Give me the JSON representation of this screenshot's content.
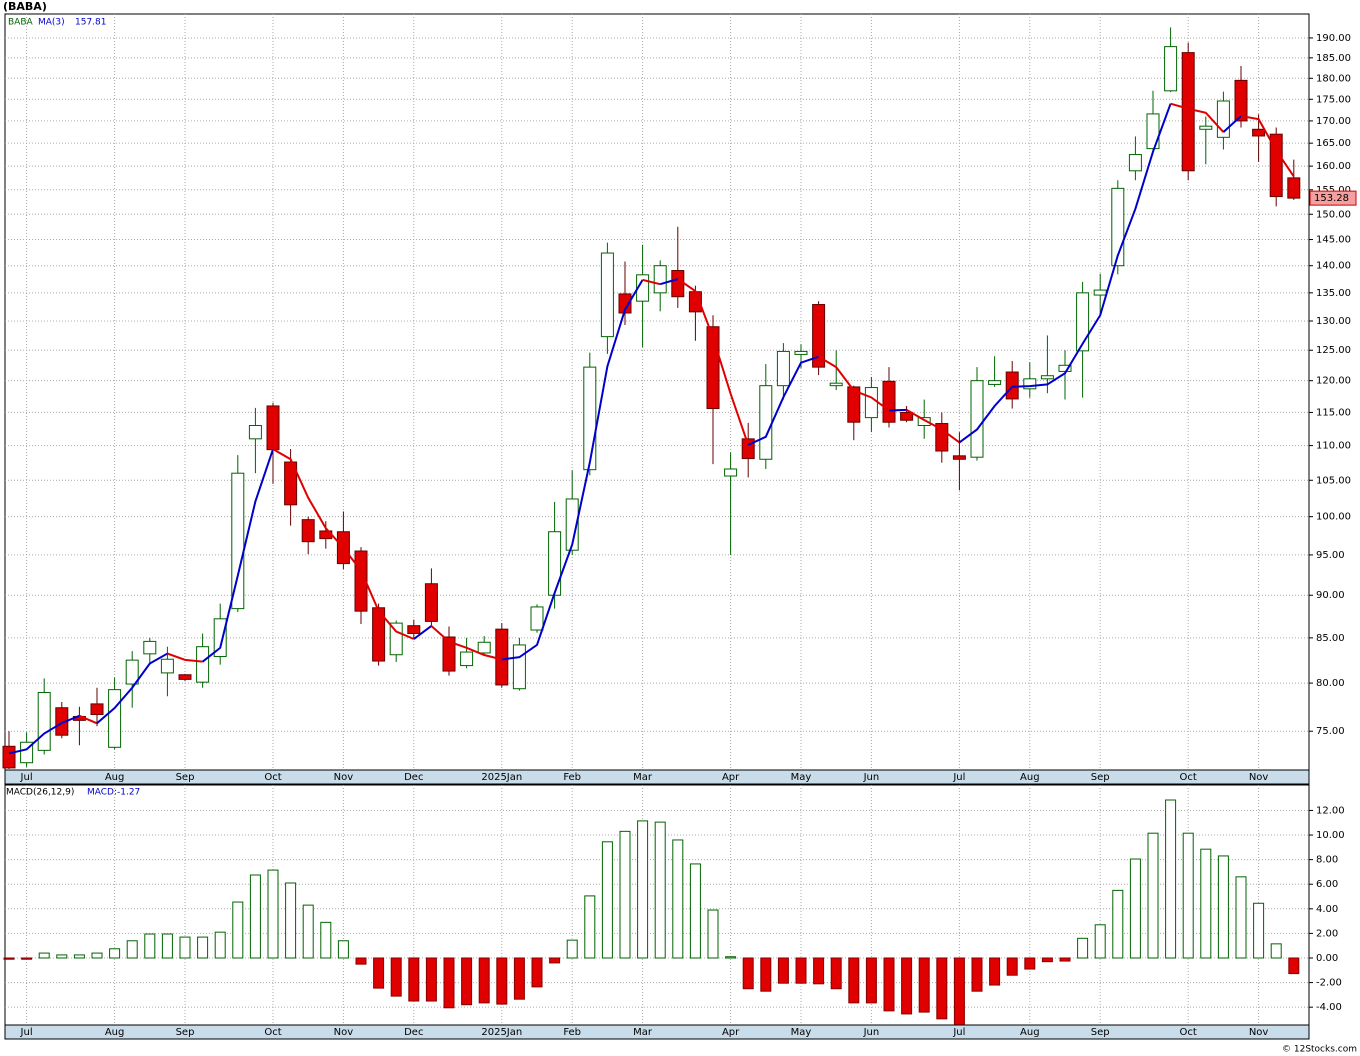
{
  "title": "(BABA)",
  "footer": "© 12Stocks.com",
  "chart_data": [
    {
      "type": "candlestick",
      "categories": [
        null,
        "Jul",
        null,
        null,
        null,
        null,
        "Aug",
        null,
        null,
        null,
        "Sep",
        null,
        null,
        null,
        null,
        "Oct",
        null,
        null,
        null,
        "Nov",
        null,
        null,
        null,
        "Dec",
        null,
        null,
        null,
        null,
        "2025Jan",
        null,
        null,
        null,
        "Feb",
        null,
        null,
        null,
        "Mar",
        null,
        null,
        null,
        null,
        "Apr",
        null,
        null,
        null,
        "May",
        null,
        null,
        null,
        "Jun",
        null,
        null,
        null,
        null,
        "Jul",
        null,
        null,
        null,
        "Aug",
        null,
        null,
        null,
        "Sep",
        null,
        null,
        null,
        null,
        "Oct",
        null,
        null,
        null,
        "Nov",
        null,
        null
      ],
      "series": [
        {
          "name": "BABA",
          "color": "#006400",
          "down_color": "#e00000",
          "open": [
            73.5,
            71.9,
            73.1,
            77.4,
            76.5,
            77.8,
            73.4,
            79.9,
            83.2,
            81.1,
            80.9,
            80.1,
            82.9,
            88.4,
            111,
            116,
            107.6,
            99.6,
            98.1,
            98.0,
            95.5,
            88.5,
            83.1,
            86.4,
            91.4,
            85.1,
            81.9,
            83.3,
            86.0,
            79.4,
            85.9,
            90,
            95.6,
            106.5,
            127.3,
            134.8,
            133.5,
            135,
            139.1,
            135.2,
            129,
            105.6,
            111,
            108,
            119.2,
            124.3,
            132.9,
            119.2,
            119,
            114.2,
            119.9,
            115,
            113,
            113.3,
            108.5,
            108.3,
            119.4,
            121.4,
            118.7,
            120.3,
            121.5,
            124.9,
            134.6,
            140,
            159,
            163.8,
            177,
            186.3,
            168.1,
            166.3,
            179.5,
            168.1,
            167,
            157.5
          ],
          "high": [
            75,
            74.9,
            80.5,
            78,
            77.5,
            79.5,
            80.6,
            83.5,
            85,
            84,
            81,
            85.5,
            89,
            108.6,
            115.7,
            116.5,
            109.5,
            100,
            99.4,
            100.7,
            96,
            89,
            87,
            87.1,
            93.3,
            86.3,
            85,
            85.2,
            86.7,
            85,
            88.9,
            102,
            106.4,
            124.6,
            144.4,
            140.8,
            144,
            141,
            147.5,
            136.3,
            131,
            109,
            113.4,
            122.7,
            126.2,
            126,
            133.5,
            125,
            119.2,
            120.6,
            122.2,
            116,
            117,
            115,
            112,
            122.2,
            124,
            123.2,
            123,
            127.5,
            125,
            137,
            138.5,
            157,
            166.5,
            177,
            192.7,
            188.8,
            171,
            176.8,
            183,
            171.5,
            168.5,
            161.4
          ],
          "low": [
            71.3,
            71.5,
            72.7,
            74.3,
            73.6,
            75.5,
            73.2,
            77.4,
            82,
            78.6,
            80.2,
            79.5,
            82,
            88,
            106,
            104.5,
            98.8,
            95.1,
            95.8,
            93.2,
            86.6,
            81.9,
            82.3,
            84.9,
            86.2,
            80.8,
            81.6,
            83,
            79.5,
            79.2,
            85.6,
            88.4,
            95,
            105.7,
            124.4,
            129.3,
            125.5,
            131.7,
            132.3,
            126.6,
            107.3,
            95,
            105.4,
            106.6,
            117,
            122,
            120.9,
            118.5,
            110.8,
            112,
            112.7,
            113.5,
            111,
            107.5,
            103.6,
            107.8,
            119,
            115.6,
            117.3,
            118,
            117,
            117.3,
            131,
            138.4,
            157,
            162.5,
            176.7,
            157,
            160.4,
            163.6,
            168.5,
            160.9,
            151.6,
            152.9
          ],
          "close": [
            71.4,
            73.9,
            79,
            74.6,
            76.1,
            76.7,
            79.3,
            82.5,
            84.6,
            82.6,
            80.4,
            84,
            87.2,
            106,
            113,
            109.4,
            101.6,
            96.7,
            97.1,
            93.9,
            88.1,
            82.4,
            86.7,
            85.5,
            86.9,
            81.3,
            83.4,
            84.5,
            79.8,
            84.2,
            88.6,
            98,
            102.4,
            122.2,
            142.4,
            131.4,
            138.3,
            140,
            134.3,
            131.6,
            115.6,
            106.6,
            108.1,
            119.2,
            124.8,
            124.8,
            122.2,
            119.6,
            113.5,
            118.9,
            113.5,
            113.8,
            114.2,
            109.2,
            108,
            120,
            120,
            117.1,
            120.3,
            120.8,
            122.5,
            135,
            135.5,
            155.3,
            162.5,
            171.6,
            187.8,
            159,
            168.8,
            174.6,
            170,
            166.6,
            153.6,
            153.28
          ]
        },
        {
          "name": "MA(3)",
          "color": "#0000cc",
          "down_color": "#e00000",
          "values": [
            72.8,
            73.2,
            74.77,
            75.83,
            76.57,
            75.8,
            77.37,
            79.5,
            82.13,
            83.23,
            82.53,
            82.33,
            83.87,
            92.4,
            102.07,
            109.47,
            108,
            102.57,
            98.47,
            95.9,
            93.03,
            88.13,
            85.73,
            84.87,
            86.37,
            84.57,
            83.87,
            83.07,
            82.57,
            82.83,
            84.2,
            90.27,
            96.33,
            107.53,
            122.33,
            132,
            137.37,
            136.57,
            137.53,
            135.3,
            127.17,
            117.93,
            110.1,
            111.3,
            117.37,
            122.93,
            123.93,
            122.2,
            118.43,
            117.33,
            115.3,
            115.4,
            113.83,
            112.4,
            110.47,
            112.4,
            116,
            119.03,
            119.13,
            119.4,
            121.2,
            126.1,
            131,
            141.93,
            151.1,
            163.13,
            173.97,
            172.8,
            171.87,
            167.47,
            171.13,
            170.4,
            163.4,
            157.81
          ]
        }
      ],
      "ylim": [
        71.2,
        196.2
      ],
      "log_scale": true,
      "grid": true,
      "yticks": [
        {
          "value": 75,
          "label": "75.00"
        },
        {
          "value": 80,
          "label": "80.00"
        },
        {
          "value": 85,
          "label": "85.00"
        },
        {
          "value": 90,
          "label": "90.00"
        },
        {
          "value": 95,
          "label": "95.00"
        },
        {
          "value": 100,
          "label": "100.00"
        },
        {
          "value": 105,
          "label": "105.00"
        },
        {
          "value": 110,
          "label": "110.00"
        },
        {
          "value": 115,
          "label": "115.00"
        },
        {
          "value": 120,
          "label": "120.00"
        },
        {
          "value": 125,
          "label": "125.00"
        },
        {
          "value": 130,
          "label": "130.00"
        },
        {
          "value": 135,
          "label": "135.00"
        },
        {
          "value": 140,
          "label": "140.00"
        },
        {
          "value": 145,
          "label": "145.00"
        },
        {
          "value": 150,
          "label": "150.00"
        },
        {
          "value": 155,
          "label": "155.00"
        },
        {
          "value": 160,
          "label": "160.00"
        },
        {
          "value": 165,
          "label": "165.00"
        },
        {
          "value": 170,
          "label": "170.00"
        },
        {
          "value": 175,
          "label": "175.00"
        },
        {
          "value": 180,
          "label": "180.00"
        },
        {
          "value": 185,
          "label": "185.00"
        },
        {
          "value": 190,
          "label": "190.00"
        }
      ]
    },
    {
      "type": "bar",
      "title": "MACD(26,12,9)",
      "categories": [
        null,
        "Jul",
        null,
        null,
        null,
        null,
        "Aug",
        null,
        null,
        null,
        "Sep",
        null,
        null,
        null,
        null,
        "Oct",
        null,
        null,
        null,
        "Nov",
        null,
        null,
        null,
        "Dec",
        null,
        null,
        null,
        null,
        "2025Jan",
        null,
        null,
        null,
        "Feb",
        null,
        null,
        null,
        "Mar",
        null,
        null,
        null,
        null,
        "Apr",
        null,
        null,
        null,
        "May",
        null,
        null,
        null,
        "Jun",
        null,
        null,
        null,
        null,
        "Jul",
        null,
        null,
        null,
        "Aug",
        null,
        null,
        null,
        "Sep",
        null,
        null,
        null,
        null,
        "Oct",
        null,
        null,
        null,
        "Nov",
        null,
        null
      ],
      "series": [
        {
          "name": "MACD:",
          "color": "#006400",
          "down_color": "#e00000",
          "values": [
            -0.1,
            -0.1,
            0.4,
            0.25,
            0.25,
            0.4,
            0.75,
            1.4,
            1.95,
            1.95,
            1.7,
            1.7,
            2.1,
            4.55,
            6.75,
            7.15,
            6.1,
            4.3,
            2.9,
            1.4,
            -0.5,
            -2.45,
            -3.1,
            -3.5,
            -3.5,
            -4.05,
            -3.8,
            -3.65,
            -3.75,
            -3.35,
            -2.35,
            -0.4,
            1.45,
            5.05,
            9.45,
            10.3,
            11.15,
            11.05,
            9.6,
            7.65,
            3.9,
            0.1,
            -2.5,
            -2.7,
            -2.05,
            -2.05,
            -2.1,
            -2.5,
            -3.65,
            -3.65,
            -4.3,
            -4.55,
            -4.4,
            -4.95,
            -5.4,
            -2.7,
            -2.2,
            -1.4,
            -0.9,
            -0.3,
            -0.25,
            1.6,
            2.7,
            5.5,
            8.05,
            10.15,
            12.85,
            10.15,
            8.85,
            8.3,
            6.6,
            4.45,
            1.15,
            -1.27
          ]
        }
      ],
      "ylim": [
        -5.45,
        14.07
      ],
      "grid": true,
      "yticks": [
        {
          "value": -4,
          "label": "-4.00"
        },
        {
          "value": -2,
          "label": "-2.00"
        },
        {
          "value": 0,
          "label": "0.00"
        },
        {
          "value": 2,
          "label": "2.00"
        },
        {
          "value": 4,
          "label": "4.00"
        },
        {
          "value": 6,
          "label": "6.00"
        },
        {
          "value": 8,
          "label": "8.00"
        },
        {
          "value": 10,
          "label": "10.00"
        },
        {
          "value": 12,
          "label": "12.00"
        }
      ]
    }
  ]
}
